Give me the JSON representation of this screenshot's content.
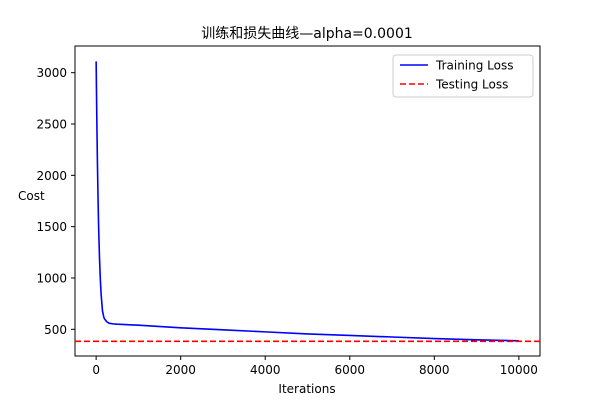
{
  "chart_data": {
    "type": "line",
    "title": "训练和损失曲线—alpha=0.0001",
    "xlabel": "Iterations",
    "ylabel": "Cost",
    "xlim": [
      -500,
      10500
    ],
    "ylim": [
      240,
      3260
    ],
    "x_ticks": [
      0,
      2000,
      4000,
      6000,
      8000,
      10000
    ],
    "y_ticks": [
      500,
      1000,
      1500,
      2000,
      2500,
      3000
    ],
    "grid": false,
    "legend_position": "top-right",
    "series": [
      {
        "name": "Training Loss",
        "style": "solid",
        "color": "#0000ff",
        "x": [
          0,
          10,
          20,
          30,
          40,
          50,
          60,
          80,
          100,
          120,
          150,
          180,
          200,
          250,
          300,
          400,
          500,
          1000,
          2000,
          3000,
          4000,
          5000,
          6000,
          7000,
          8000,
          9000,
          10000
        ],
        "y": [
          3110,
          2750,
          2430,
          2140,
          1890,
          1670,
          1480,
          1190,
          980,
          830,
          680,
          620,
          600,
          575,
          560,
          553,
          550,
          540,
          515,
          495,
          475,
          455,
          440,
          425,
          410,
          398,
          388
        ]
      },
      {
        "name": "Testing Loss",
        "style": "dashed",
        "color": "#ff0000",
        "y": 383
      }
    ]
  }
}
